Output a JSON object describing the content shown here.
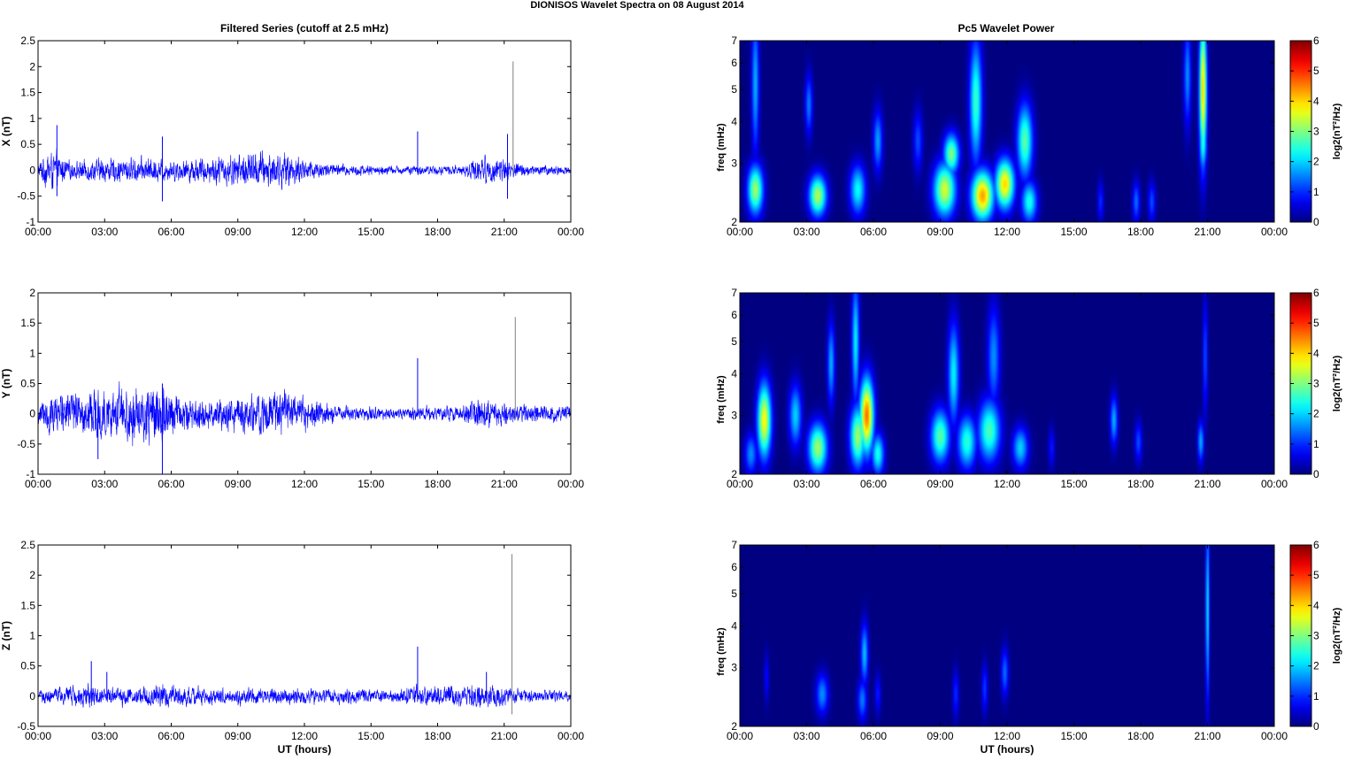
{
  "figure": {
    "title": "DIONISOS Wavelet Spectra on 08 August    2014"
  },
  "left_column_title": "Filtered Series (cutoff at 2.5 mHz)",
  "right_column_title": "Pc5 Wavelet Power",
  "chart_data": [
    {
      "type": "line",
      "panel": "X",
      "ylabel": "X (nT)",
      "xlabel": "",
      "x_tick_labels": [
        "00:00",
        "03:00",
        "06:00",
        "09:00",
        "12:00",
        "15:00",
        "18:00",
        "21:00",
        "00:00"
      ],
      "xlim_hours": [
        0,
        24
      ],
      "ylim": [
        -1,
        2.5
      ],
      "y_ticks": [
        -1,
        -0.5,
        0,
        0.5,
        1,
        1.5,
        2,
        2.5
      ],
      "y_tick_labels": [
        "-1",
        "-0.5",
        "0",
        "0.5",
        "1",
        "1.5",
        "2",
        "2.5"
      ],
      "series_color": "#0000ff",
      "spike_color": "#808080",
      "amplitude_profile": [
        {
          "t": 0,
          "amp": 0.1
        },
        {
          "t": 0.5,
          "amp": 0.3
        },
        {
          "t": 1.5,
          "amp": 0.12
        },
        {
          "t": 3,
          "amp": 0.18
        },
        {
          "t": 5,
          "amp": 0.18
        },
        {
          "t": 6,
          "amp": 0.15
        },
        {
          "t": 8,
          "amp": 0.2
        },
        {
          "t": 10,
          "amp": 0.28
        },
        {
          "t": 11,
          "amp": 0.25
        },
        {
          "t": 12,
          "amp": 0.18
        },
        {
          "t": 13,
          "amp": 0.1
        },
        {
          "t": 16,
          "amp": 0.06
        },
        {
          "t": 19,
          "amp": 0.07
        },
        {
          "t": 20,
          "amp": 0.2
        },
        {
          "t": 21,
          "amp": 0.18
        },
        {
          "t": 22,
          "amp": 0.08
        },
        {
          "t": 24,
          "amp": 0.06
        }
      ],
      "spikes": [
        {
          "t": 0.85,
          "min": -0.5,
          "max": 0.87
        },
        {
          "t": 5.6,
          "min": -0.6,
          "max": 0.65
        },
        {
          "t": 17.1,
          "min": -0.05,
          "max": 0.75
        },
        {
          "t": 21.15,
          "min": -0.55,
          "max": 0.7
        },
        {
          "t": 21.4,
          "min": -0.05,
          "max": 2.1
        }
      ]
    },
    {
      "type": "line",
      "panel": "Y",
      "ylabel": "Y (nT)",
      "xlabel": "",
      "x_tick_labels": [
        "00:00",
        "03:00",
        "06:00",
        "09:00",
        "12:00",
        "15:00",
        "18:00",
        "21:00",
        "00:00"
      ],
      "xlim_hours": [
        0,
        24
      ],
      "ylim": [
        -1,
        2
      ],
      "y_ticks": [
        -1,
        -0.5,
        0,
        0.5,
        1,
        1.5,
        2
      ],
      "y_tick_labels": [
        "-1",
        "-0.5",
        "0",
        "0.5",
        "1",
        "1.5",
        "2"
      ],
      "series_color": "#0000ff",
      "spike_color": "#808080",
      "amplitude_profile": [
        {
          "t": 0,
          "amp": 0.18
        },
        {
          "t": 1,
          "amp": 0.28
        },
        {
          "t": 3,
          "amp": 0.3
        },
        {
          "t": 5.5,
          "amp": 0.4
        },
        {
          "t": 6.5,
          "amp": 0.2
        },
        {
          "t": 8,
          "amp": 0.18
        },
        {
          "t": 10,
          "amp": 0.28
        },
        {
          "t": 12,
          "amp": 0.22
        },
        {
          "t": 13.5,
          "amp": 0.1
        },
        {
          "t": 16,
          "amp": 0.07
        },
        {
          "t": 19,
          "amp": 0.1
        },
        {
          "t": 20,
          "amp": 0.2
        },
        {
          "t": 21.5,
          "amp": 0.12
        },
        {
          "t": 24,
          "amp": 0.1
        }
      ],
      "spikes": [
        {
          "t": 2.7,
          "min": -0.75,
          "max": 0.2
        },
        {
          "t": 5.6,
          "min": -1.0,
          "max": 0.5
        },
        {
          "t": 17.1,
          "min": -0.05,
          "max": 0.92
        },
        {
          "t": 21.5,
          "min": -0.1,
          "max": 1.6
        }
      ]
    },
    {
      "type": "line",
      "panel": "Z",
      "ylabel": "Z (nT)",
      "xlabel": "UT (hours)",
      "x_tick_labels": [
        "00:00",
        "03:00",
        "06:00",
        "09:00",
        "12:00",
        "15:00",
        "18:00",
        "21:00",
        "00:00"
      ],
      "xlim_hours": [
        0,
        24
      ],
      "ylim": [
        -0.5,
        2.5
      ],
      "y_ticks": [
        -0.5,
        0,
        0.5,
        1,
        1.5,
        2,
        2.5
      ],
      "y_tick_labels": [
        "-0.5",
        "0",
        "0.5",
        "1",
        "1.5",
        "2",
        "2.5"
      ],
      "series_color": "#0000ff",
      "spike_color": "#808080",
      "amplitude_profile": [
        {
          "t": 0,
          "amp": 0.08
        },
        {
          "t": 2.4,
          "amp": 0.15
        },
        {
          "t": 3,
          "amp": 0.1
        },
        {
          "t": 5.5,
          "amp": 0.14
        },
        {
          "t": 8,
          "amp": 0.1
        },
        {
          "t": 12,
          "amp": 0.1
        },
        {
          "t": 16,
          "amp": 0.08
        },
        {
          "t": 17,
          "amp": 0.12
        },
        {
          "t": 20,
          "amp": 0.15
        },
        {
          "t": 21.5,
          "amp": 0.1
        },
        {
          "t": 24,
          "amp": 0.06
        }
      ],
      "spikes": [
        {
          "t": 2.4,
          "min": -0.1,
          "max": 0.58
        },
        {
          "t": 3.1,
          "min": -0.05,
          "max": 0.4
        },
        {
          "t": 17.1,
          "min": -0.05,
          "max": 0.82
        },
        {
          "t": 20.2,
          "min": -0.08,
          "max": 0.4
        },
        {
          "t": 21.35,
          "min": -0.3,
          "max": 2.35
        }
      ]
    },
    {
      "type": "heatmap",
      "panel": "X",
      "ylabel": "freq (mHz)",
      "xlabel": "",
      "x_tick_labels": [
        "00:00",
        "03:00",
        "06:00",
        "09:00",
        "12:00",
        "15:00",
        "18:00",
        "21:00",
        "00:00"
      ],
      "xlim_hours": [
        0,
        24
      ],
      "yscale": "log",
      "ylim": [
        2,
        7
      ],
      "y_ticks": [
        2,
        3,
        4,
        5,
        6,
        7
      ],
      "y_tick_labels": [
        "2",
        "3",
        "4",
        "5",
        "6",
        "7"
      ],
      "colorbar_label": "log2(nT²/Hz)",
      "colorbar_range": [
        0,
        6
      ],
      "colorbar_tick_labels": [
        "0",
        "1",
        "2",
        "3",
        "4",
        "5",
        "6"
      ],
      "blobs": [
        {
          "t": 0.7,
          "f": 2.5,
          "level": 3.2,
          "st": 0.25,
          "sf": 0.12
        },
        {
          "t": 0.7,
          "f": 5.2,
          "level": 1.8,
          "st": 0.12,
          "sf": 0.35
        },
        {
          "t": 3.1,
          "f": 4.5,
          "level": 1.5,
          "st": 0.12,
          "sf": 0.15
        },
        {
          "t": 3.5,
          "f": 2.4,
          "level": 3.3,
          "st": 0.28,
          "sf": 0.1
        },
        {
          "t": 5.3,
          "f": 2.5,
          "level": 2.3,
          "st": 0.25,
          "sf": 0.12
        },
        {
          "t": 6.2,
          "f": 3.5,
          "level": 1.7,
          "st": 0.15,
          "sf": 0.15
        },
        {
          "t": 8.0,
          "f": 3.5,
          "level": 1.2,
          "st": 0.15,
          "sf": 0.15
        },
        {
          "t": 9.2,
          "f": 2.5,
          "level": 3.5,
          "st": 0.35,
          "sf": 0.13
        },
        {
          "t": 9.5,
          "f": 3.2,
          "level": 3.0,
          "st": 0.25,
          "sf": 0.1
        },
        {
          "t": 10.6,
          "f": 4.6,
          "level": 2.6,
          "st": 0.2,
          "sf": 0.3
        },
        {
          "t": 10.9,
          "f": 2.4,
          "level": 4.3,
          "st": 0.35,
          "sf": 0.12
        },
        {
          "t": 11.9,
          "f": 2.6,
          "level": 4.0,
          "st": 0.3,
          "sf": 0.12
        },
        {
          "t": 12.8,
          "f": 3.5,
          "level": 2.8,
          "st": 0.25,
          "sf": 0.18
        },
        {
          "t": 13.0,
          "f": 2.3,
          "level": 2.4,
          "st": 0.25,
          "sf": 0.1
        },
        {
          "t": 16.2,
          "f": 2.3,
          "level": 1.0,
          "st": 0.1,
          "sf": 0.1
        },
        {
          "t": 17.8,
          "f": 2.3,
          "level": 1.4,
          "st": 0.12,
          "sf": 0.1
        },
        {
          "t": 18.5,
          "f": 2.3,
          "level": 1.2,
          "st": 0.12,
          "sf": 0.1
        },
        {
          "t": 20.1,
          "f": 5.5,
          "level": 1.6,
          "st": 0.12,
          "sf": 0.25
        },
        {
          "t": 20.8,
          "f": 5.0,
          "level": 4.0,
          "st": 0.12,
          "sf": 0.35
        },
        {
          "t": 20.8,
          "f": 3.5,
          "level": 2.5,
          "st": 0.12,
          "sf": 0.15
        }
      ]
    },
    {
      "type": "heatmap",
      "panel": "Y",
      "ylabel": "freq (mHz)",
      "xlabel": "",
      "x_tick_labels": [
        "00:00",
        "03:00",
        "06:00",
        "09:00",
        "12:00",
        "15:00",
        "18:00",
        "21:00",
        "00:00"
      ],
      "xlim_hours": [
        0,
        24
      ],
      "yscale": "log",
      "ylim": [
        2,
        7
      ],
      "y_ticks": [
        2,
        3,
        4,
        5,
        6,
        7
      ],
      "y_tick_labels": [
        "2",
        "3",
        "4",
        "5",
        "6",
        "7"
      ],
      "colorbar_label": "log2(nT²/Hz)",
      "colorbar_range": [
        0,
        6
      ],
      "colorbar_tick_labels": [
        "0",
        "1",
        "2",
        "3",
        "4",
        "5",
        "6"
      ],
      "blobs": [
        {
          "t": 0.5,
          "f": 2.3,
          "level": 1.6,
          "st": 0.2,
          "sf": 0.1
        },
        {
          "t": 1.1,
          "f": 2.9,
          "level": 3.8,
          "st": 0.22,
          "sf": 0.18
        },
        {
          "t": 2.5,
          "f": 3.0,
          "level": 2.0,
          "st": 0.2,
          "sf": 0.15
        },
        {
          "t": 3.5,
          "f": 2.4,
          "level": 3.2,
          "st": 0.3,
          "sf": 0.12
        },
        {
          "t": 4.1,
          "f": 4.3,
          "level": 1.8,
          "st": 0.12,
          "sf": 0.2
        },
        {
          "t": 5.3,
          "f": 2.6,
          "level": 3.2,
          "st": 0.25,
          "sf": 0.15
        },
        {
          "t": 5.2,
          "f": 5.0,
          "level": 2.2,
          "st": 0.12,
          "sf": 0.3
        },
        {
          "t": 5.7,
          "f": 3.0,
          "level": 4.6,
          "st": 0.22,
          "sf": 0.18
        },
        {
          "t": 6.2,
          "f": 2.3,
          "level": 2.4,
          "st": 0.2,
          "sf": 0.1
        },
        {
          "t": 9.0,
          "f": 2.6,
          "level": 2.8,
          "st": 0.3,
          "sf": 0.13
        },
        {
          "t": 9.6,
          "f": 4.0,
          "level": 2.2,
          "st": 0.18,
          "sf": 0.25
        },
        {
          "t": 10.2,
          "f": 2.5,
          "level": 2.5,
          "st": 0.3,
          "sf": 0.13
        },
        {
          "t": 11.2,
          "f": 2.7,
          "level": 2.7,
          "st": 0.35,
          "sf": 0.15
        },
        {
          "t": 11.4,
          "f": 4.5,
          "level": 1.6,
          "st": 0.2,
          "sf": 0.25
        },
        {
          "t": 12.6,
          "f": 2.4,
          "level": 2.0,
          "st": 0.25,
          "sf": 0.1
        },
        {
          "t": 14.0,
          "f": 2.4,
          "level": 0.9,
          "st": 0.1,
          "sf": 0.1
        },
        {
          "t": 16.8,
          "f": 2.9,
          "level": 1.8,
          "st": 0.12,
          "sf": 0.12
        },
        {
          "t": 17.9,
          "f": 2.5,
          "level": 1.2,
          "st": 0.12,
          "sf": 0.1
        },
        {
          "t": 20.7,
          "f": 2.5,
          "level": 1.8,
          "st": 0.1,
          "sf": 0.1
        },
        {
          "t": 20.9,
          "f": 4.5,
          "level": 1.2,
          "st": 0.08,
          "sf": 0.3
        }
      ]
    },
    {
      "type": "heatmap",
      "panel": "Z",
      "ylabel": "freq (mHz)",
      "xlabel": "UT (hours)",
      "x_tick_labels": [
        "00:00",
        "03:00",
        "06:00",
        "09:00",
        "12:00",
        "15:00",
        "18:00",
        "21:00",
        "00:00"
      ],
      "xlim_hours": [
        0,
        24
      ],
      "yscale": "log",
      "ylim": [
        2,
        7
      ],
      "y_ticks": [
        2,
        3,
        4,
        5,
        6,
        7
      ],
      "y_tick_labels": [
        "2",
        "3",
        "4",
        "5",
        "6",
        "7"
      ],
      "colorbar_label": "log2(nT²/Hz)",
      "colorbar_range": [
        0,
        6
      ],
      "colorbar_tick_labels": [
        "0",
        "1",
        "2",
        "3",
        "4",
        "5",
        "6"
      ],
      "blobs": [
        {
          "t": 1.2,
          "f": 2.8,
          "level": 0.8,
          "st": 0.08,
          "sf": 0.12
        },
        {
          "t": 3.7,
          "f": 2.5,
          "level": 1.6,
          "st": 0.2,
          "sf": 0.1
        },
        {
          "t": 5.5,
          "f": 2.4,
          "level": 1.5,
          "st": 0.15,
          "sf": 0.1
        },
        {
          "t": 5.6,
          "f": 3.3,
          "level": 1.9,
          "st": 0.12,
          "sf": 0.15
        },
        {
          "t": 6.2,
          "f": 2.5,
          "level": 0.9,
          "st": 0.1,
          "sf": 0.1
        },
        {
          "t": 9.7,
          "f": 2.5,
          "level": 1.0,
          "st": 0.1,
          "sf": 0.12
        },
        {
          "t": 11.0,
          "f": 2.6,
          "level": 1.1,
          "st": 0.1,
          "sf": 0.12
        },
        {
          "t": 11.9,
          "f": 2.9,
          "level": 1.4,
          "st": 0.12,
          "sf": 0.12
        },
        {
          "t": 21.0,
          "f": 4.5,
          "level": 2.2,
          "st": 0.06,
          "sf": 0.45
        }
      ]
    }
  ]
}
